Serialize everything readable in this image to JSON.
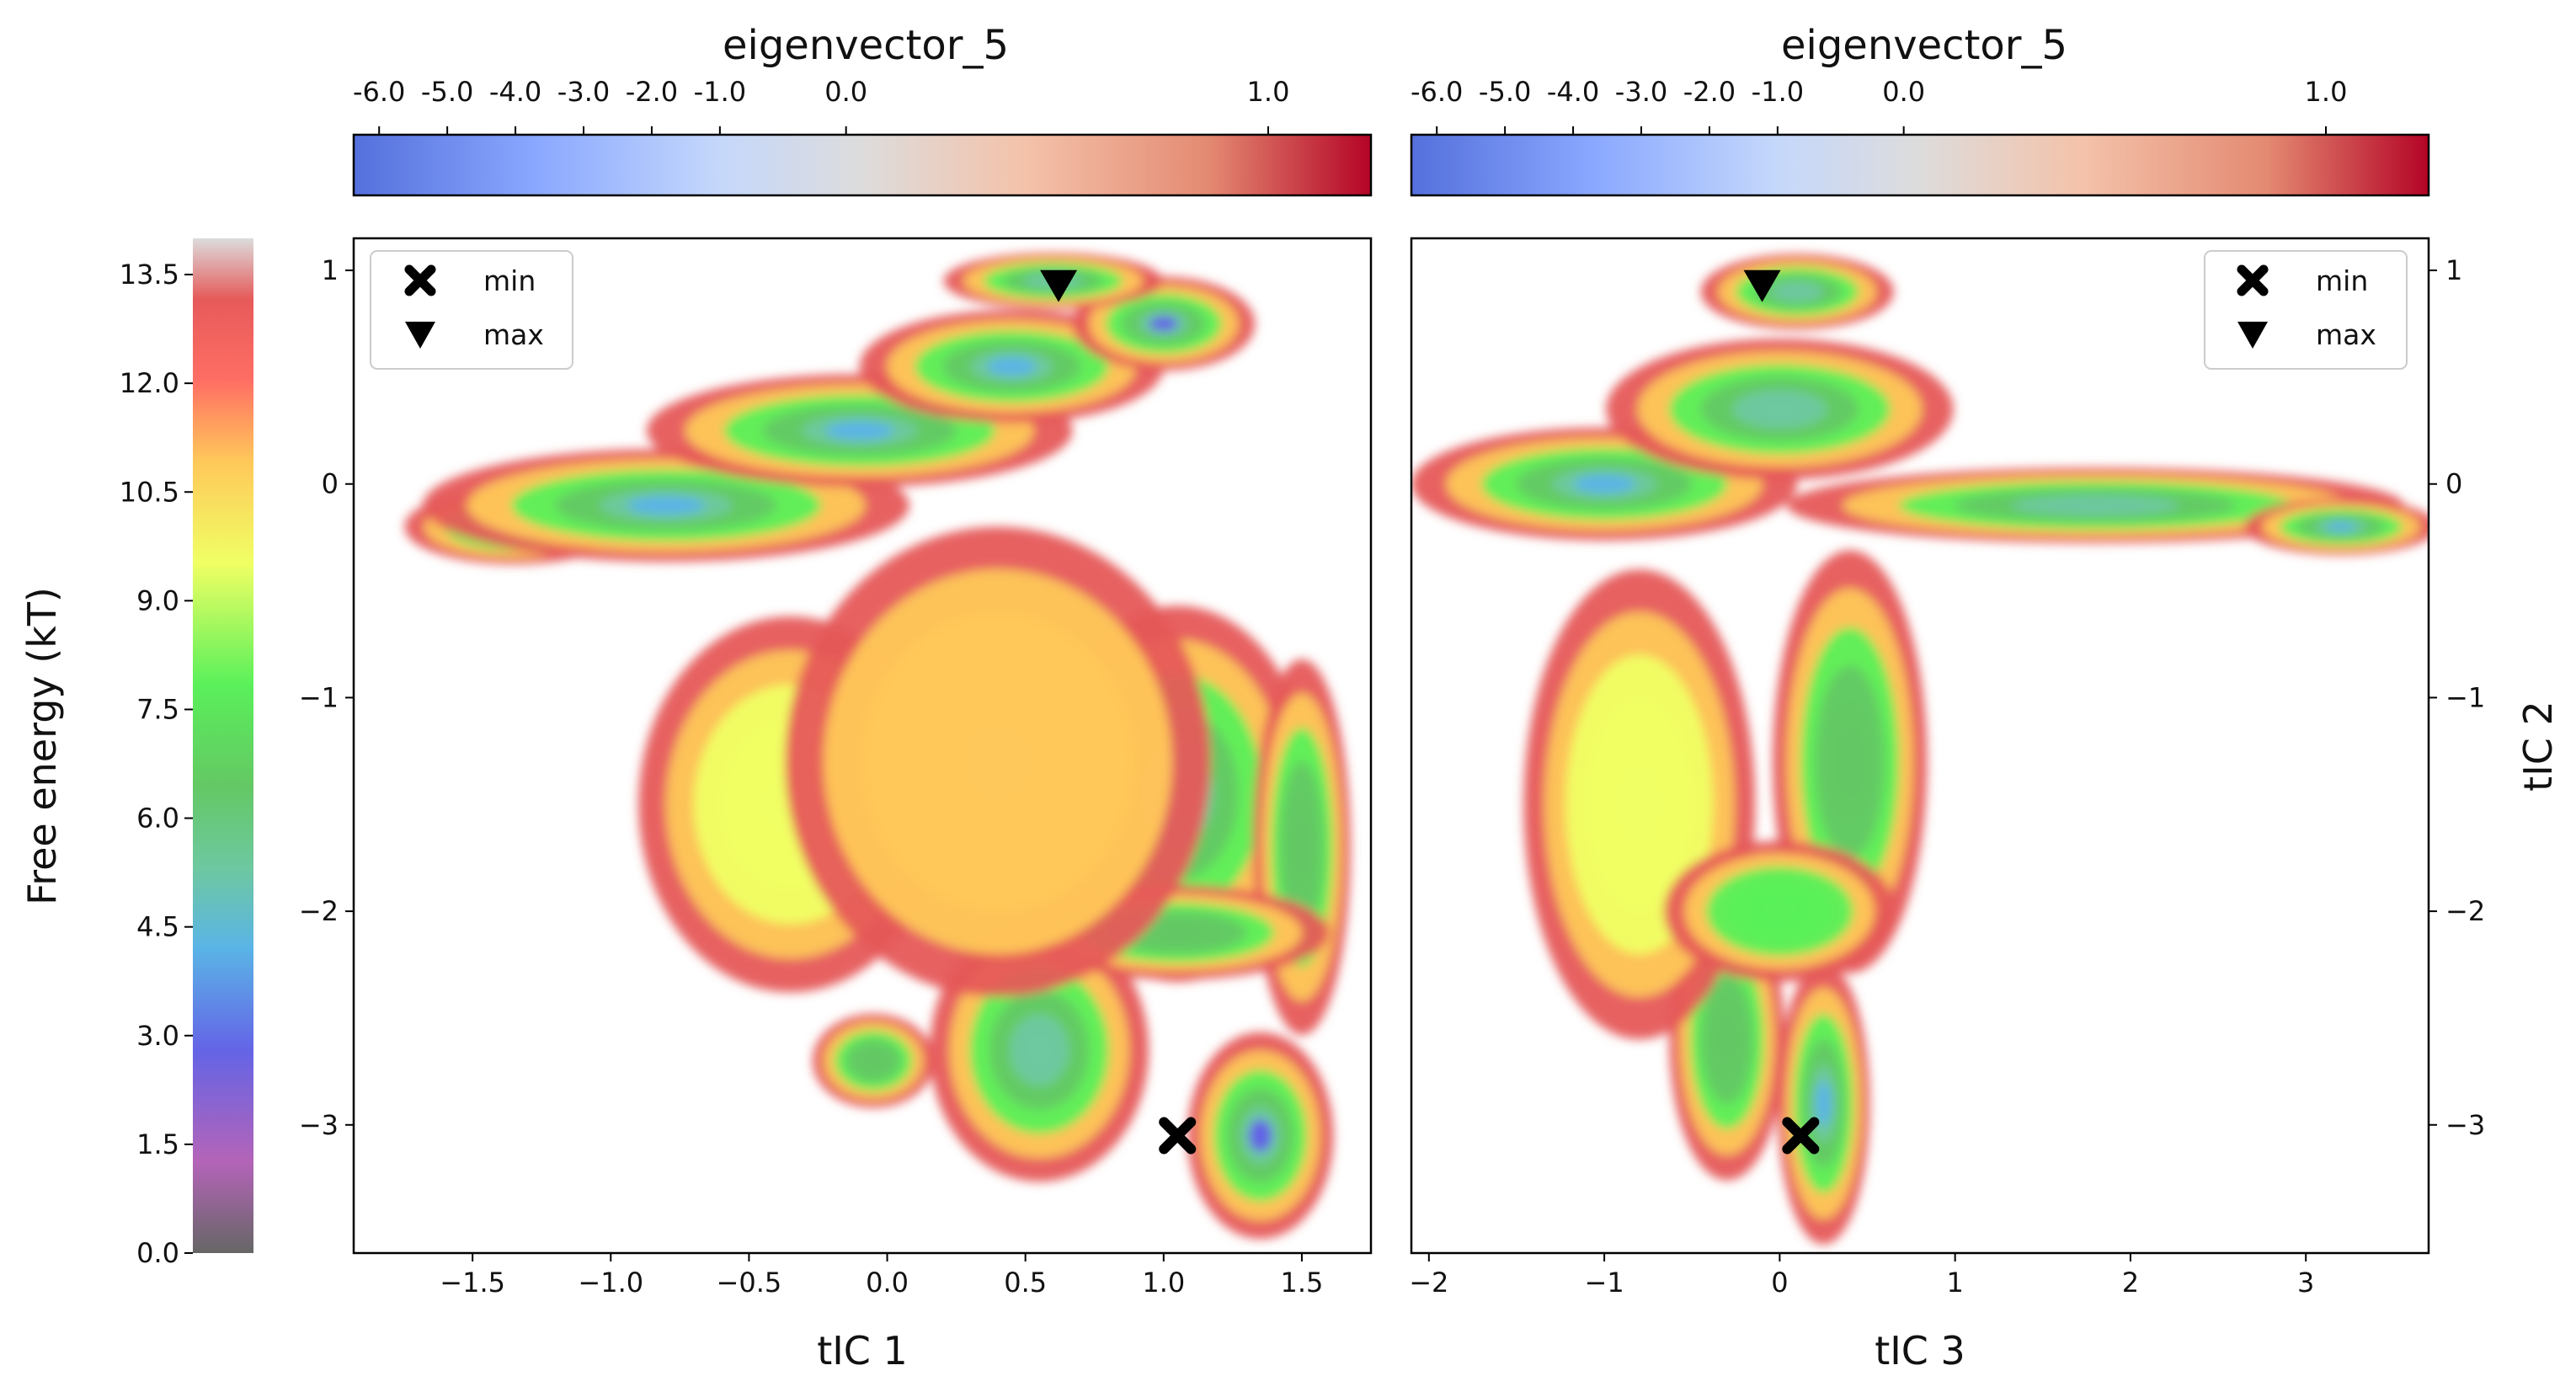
{
  "chart_data": {
    "type": "heatmap",
    "free_energy_colorbar": {
      "label": "Free energy (kT)",
      "range": [
        0.0,
        14.0
      ],
      "ticks": [
        "0.0",
        "1.5",
        "3.0",
        "4.5",
        "6.0",
        "7.5",
        "9.0",
        "10.5",
        "12.0",
        "13.5"
      ],
      "tick_values": [
        0.0,
        1.5,
        3.0,
        4.5,
        6.0,
        7.5,
        9.0,
        10.5,
        12.0,
        13.5
      ],
      "colormap": [
        "#666666",
        "#b464b8",
        "#6464e6",
        "#5ab4e6",
        "#6ec8a0",
        "#64c864",
        "#5af05a",
        "#f0ff64",
        "#ffc85a",
        "#ff6e64",
        "#e65a5a",
        "#dcdcdc"
      ]
    },
    "panels": [
      {
        "id": "left",
        "xlabel": "tIC 1",
        "ylabel": "",
        "xlim": [
          -1.93,
          1.75
        ],
        "ylim": [
          -3.6,
          1.15
        ],
        "xticks": [
          -1.5,
          -1.0,
          -0.5,
          0.0,
          0.5,
          1.0,
          1.5
        ],
        "xtick_labels": [
          "−1.5",
          "−1.0",
          "−0.5",
          "0.0",
          "0.5",
          "1.0",
          "1.5"
        ],
        "yticks": [
          1,
          0,
          -1,
          -2,
          -3
        ],
        "ytick_labels": [
          "1",
          "0",
          "−1",
          "−2",
          "−3"
        ],
        "ytick_side": "left",
        "colorbar_title": "eigenvector_5",
        "colorbar_ticks": [
          "-6.0",
          "-5.0",
          "-4.0",
          "-3.0",
          "-2.0",
          "-1.0",
          "0.0",
          "1.0"
        ],
        "legend": {
          "position": "top-left",
          "entries": [
            "min",
            "max"
          ]
        },
        "min_marker": {
          "x": 1.05,
          "y": -3.05
        },
        "max_marker": {
          "x": 0.62,
          "y": 0.93
        },
        "basins": [
          {
            "x": -1.35,
            "y": -0.2,
            "energy": 3.5,
            "sx": 0.18,
            "sy": 0.08
          },
          {
            "x": -0.8,
            "y": -0.1,
            "energy": 4.2,
            "sx": 0.4,
            "sy": 0.12
          },
          {
            "x": -0.1,
            "y": 0.25,
            "energy": 4.2,
            "sx": 0.35,
            "sy": 0.12
          },
          {
            "x": 0.45,
            "y": 0.55,
            "energy": 4.0,
            "sx": 0.25,
            "sy": 0.12
          },
          {
            "x": 1.0,
            "y": 0.75,
            "energy": 3.0,
            "sx": 0.15,
            "sy": 0.1
          },
          {
            "x": 0.6,
            "y": 0.95,
            "energy": 5.0,
            "sx": 0.18,
            "sy": 0.06
          },
          {
            "x": 1.05,
            "y": -1.45,
            "energy": 5.5,
            "sx": 0.22,
            "sy": 0.4
          },
          {
            "x": 1.5,
            "y": -1.7,
            "energy": 6.0,
            "sx": 0.08,
            "sy": 0.4
          },
          {
            "x": 0.55,
            "y": -2.65,
            "energy": 5.5,
            "sx": 0.18,
            "sy": 0.28
          },
          {
            "x": 1.35,
            "y": -3.05,
            "energy": 3.0,
            "sx": 0.12,
            "sy": 0.22
          },
          {
            "x": 1.05,
            "y": -2.1,
            "energy": 6.2,
            "sx": 0.25,
            "sy": 0.1
          },
          {
            "x": -0.05,
            "y": -2.7,
            "energy": 6.5,
            "sx": 0.1,
            "sy": 0.1
          },
          {
            "x": -0.35,
            "y": -1.5,
            "energy": 9.5,
            "sx": 0.25,
            "sy": 0.4
          },
          {
            "x": 0.4,
            "y": -1.3,
            "energy": 10.0,
            "sx": 0.35,
            "sy": 0.5
          }
        ]
      },
      {
        "id": "right",
        "xlabel": "tIC 3",
        "ylabel": "tIC 2",
        "xlim": [
          -2.1,
          3.7
        ],
        "ylim": [
          -3.6,
          1.15
        ],
        "xticks": [
          -2,
          -1,
          0,
          1,
          2,
          3
        ],
        "xtick_labels": [
          "−2",
          "−1",
          "0",
          "1",
          "2",
          "3"
        ],
        "yticks": [
          1,
          0,
          -1,
          -2,
          -3
        ],
        "ytick_labels": [
          "1",
          "0",
          "−1",
          "−2",
          "−3"
        ],
        "ytick_side": "right",
        "colorbar_title": "eigenvector_5",
        "colorbar_ticks": [
          "-6.0",
          "-5.0",
          "-4.0",
          "-3.0",
          "-2.0",
          "-1.0",
          "0.0",
          "1.0"
        ],
        "legend": {
          "position": "top-right",
          "entries": [
            "min",
            "max"
          ]
        },
        "min_marker": {
          "x": 0.12,
          "y": -3.05
        },
        "max_marker": {
          "x": -0.1,
          "y": 0.93
        },
        "basins": [
          {
            "x": -1.0,
            "y": 0.0,
            "energy": 4.2,
            "sx": 0.5,
            "sy": 0.12
          },
          {
            "x": 0.0,
            "y": 0.35,
            "energy": 4.5,
            "sx": 0.45,
            "sy": 0.15
          },
          {
            "x": 0.1,
            "y": 0.9,
            "energy": 5.0,
            "sx": 0.25,
            "sy": 0.08
          },
          {
            "x": 1.8,
            "y": -0.1,
            "energy": 5.0,
            "sx": 0.8,
            "sy": 0.08
          },
          {
            "x": 3.2,
            "y": -0.2,
            "energy": 3.5,
            "sx": 0.25,
            "sy": 0.06
          },
          {
            "x": 0.4,
            "y": -1.3,
            "energy": 6.0,
            "sx": 0.2,
            "sy": 0.45
          },
          {
            "x": -0.3,
            "y": -2.6,
            "energy": 6.0,
            "sx": 0.15,
            "sy": 0.3
          },
          {
            "x": 0.25,
            "y": -2.9,
            "energy": 3.5,
            "sx": 0.12,
            "sy": 0.3
          },
          {
            "x": -0.8,
            "y": -1.5,
            "energy": 9.5,
            "sx": 0.3,
            "sy": 0.5
          },
          {
            "x": 0.0,
            "y": -2.0,
            "energy": 7.0,
            "sx": 0.3,
            "sy": 0.15
          }
        ]
      }
    ]
  }
}
